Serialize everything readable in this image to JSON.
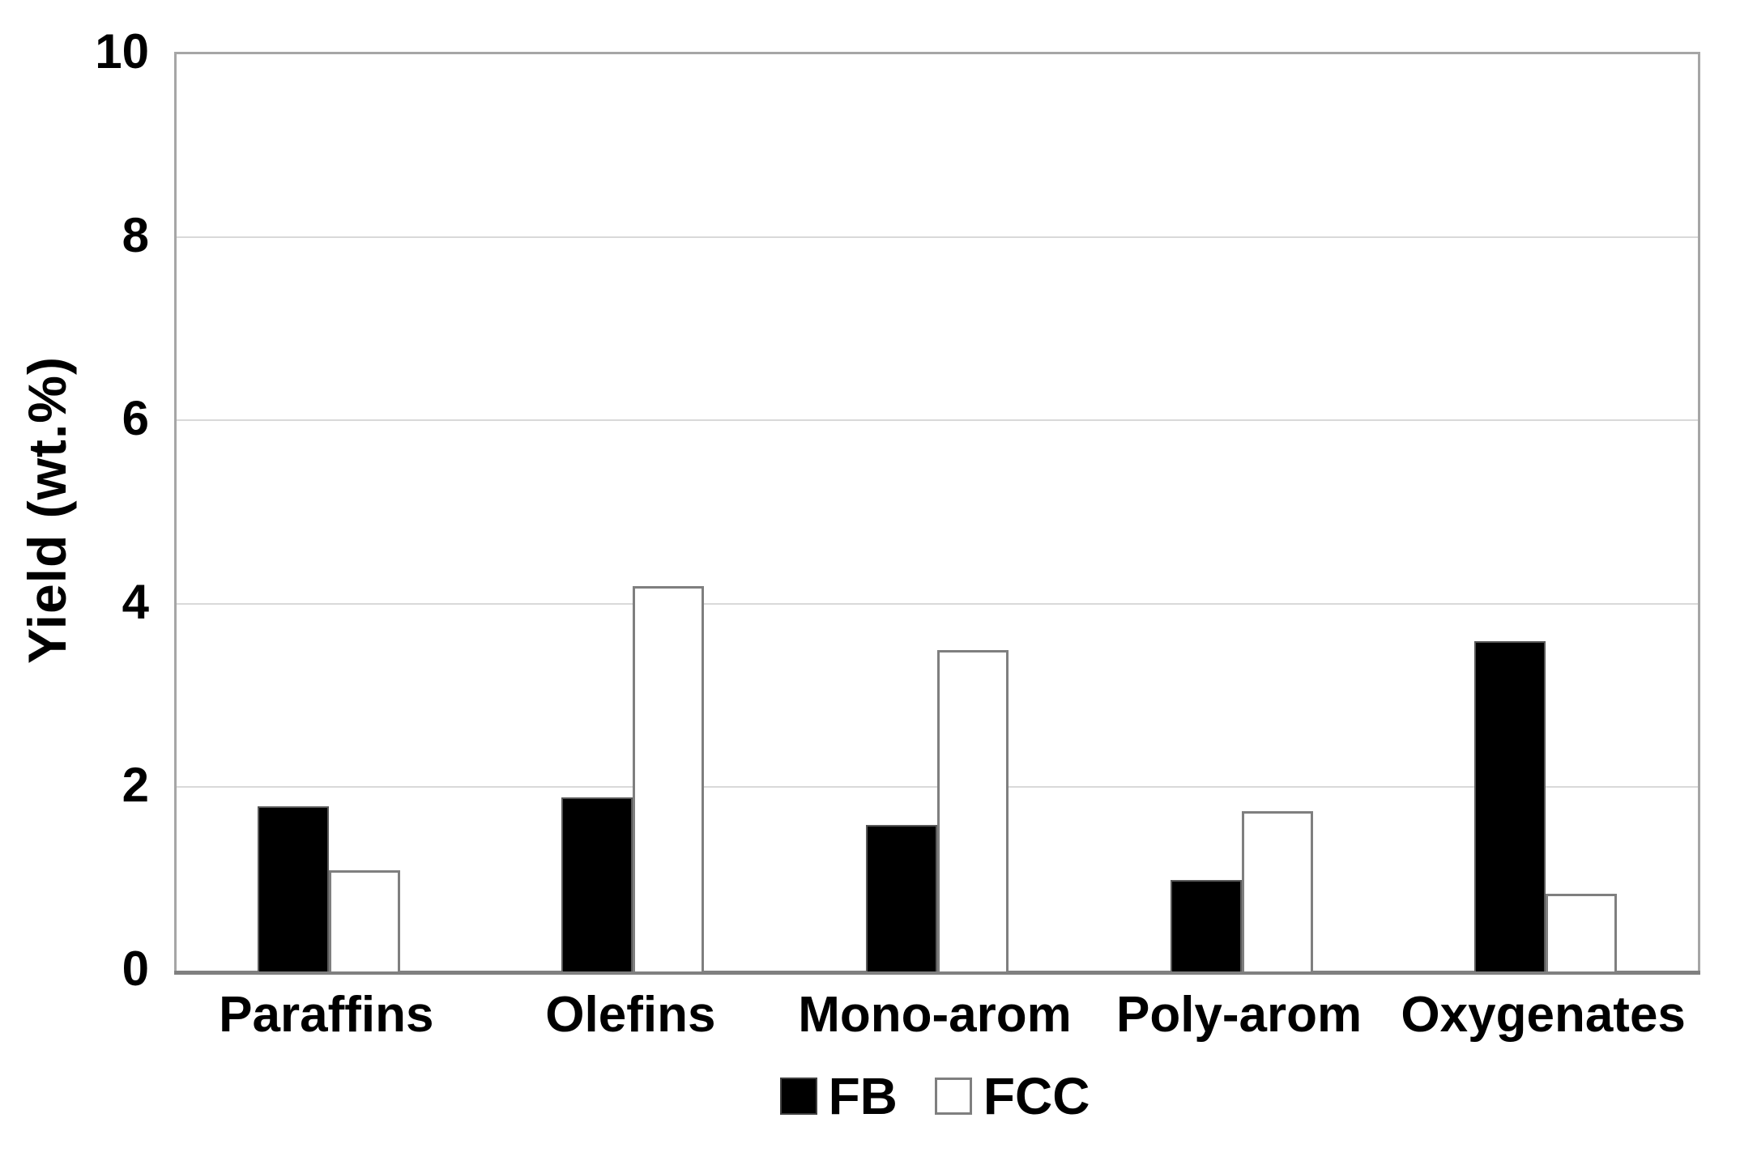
{
  "chart_data": {
    "type": "bar",
    "title": "",
    "categories": [
      "Paraffins",
      "Olefins",
      "Mono-arom",
      "Poly-arom",
      "Oxygenates"
    ],
    "series": [
      {
        "name": "FB",
        "values": [
          1.8,
          1.9,
          1.6,
          1.0,
          3.6
        ],
        "fill": "#000000",
        "border": "#595959"
      },
      {
        "name": "FCC",
        "values": [
          1.1,
          4.2,
          3.5,
          1.75,
          0.85
        ],
        "fill": "#ffffff",
        "border": "#7f7f7f"
      }
    ],
    "xlabel": "",
    "ylabel": "Yield (wt.%)",
    "ylim": [
      0,
      10
    ],
    "yticks": [
      0,
      2,
      4,
      6,
      8,
      10
    ],
    "grid": true,
    "legend_position": "bottom"
  },
  "colors": {
    "gridline": "#d9d9d9",
    "plot_border": "#a6a6a6",
    "axis_line": "#808080",
    "text": "#000000",
    "background": "#ffffff"
  },
  "legend": {
    "items": [
      {
        "label": "FB"
      },
      {
        "label": "FCC"
      }
    ]
  }
}
